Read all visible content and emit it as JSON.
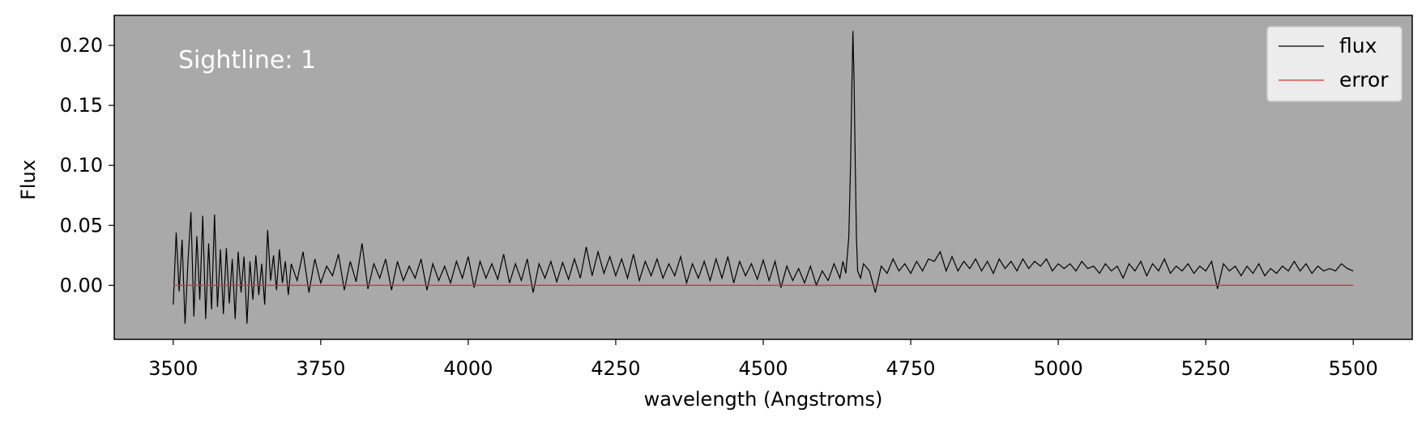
{
  "chart_data": {
    "type": "line",
    "title": "",
    "xlabel": "wavelength (Angstroms)",
    "ylabel": "Flux",
    "xlim": [
      3400,
      5600
    ],
    "ylim": [
      -0.045,
      0.225
    ],
    "xticks": [
      3500,
      3750,
      4000,
      4250,
      4500,
      4750,
      5000,
      5250,
      5500
    ],
    "xtick_labels": [
      "3500",
      "3750",
      "4000",
      "4250",
      "4500",
      "4750",
      "5000",
      "5250",
      "5500"
    ],
    "yticks": [
      0.0,
      0.05,
      0.1,
      0.15,
      0.2
    ],
    "ytick_labels": [
      "0.00",
      "0.05",
      "0.10",
      "0.15",
      "0.20"
    ],
    "grid": false,
    "legend_position": "top-right",
    "annotation": "Sightline: 1",
    "plot_background": "#a9a9a9",
    "legend_background": "#ececec",
    "series": [
      {
        "name": "flux",
        "color": "#000000",
        "x": [
          3500,
          3505,
          3510,
          3515,
          3520,
          3525,
          3530,
          3535,
          3540,
          3545,
          3550,
          3555,
          3560,
          3565,
          3570,
          3575,
          3580,
          3585,
          3590,
          3595,
          3600,
          3605,
          3610,
          3615,
          3620,
          3625,
          3630,
          3635,
          3640,
          3645,
          3650,
          3655,
          3660,
          3665,
          3670,
          3675,
          3680,
          3685,
          3690,
          3695,
          3700,
          3710,
          3720,
          3730,
          3740,
          3750,
          3760,
          3770,
          3780,
          3790,
          3800,
          3810,
          3820,
          3830,
          3840,
          3850,
          3860,
          3870,
          3880,
          3890,
          3900,
          3910,
          3920,
          3930,
          3940,
          3950,
          3960,
          3970,
          3980,
          3990,
          4000,
          4010,
          4020,
          4030,
          4040,
          4050,
          4060,
          4070,
          4080,
          4090,
          4100,
          4110,
          4120,
          4130,
          4140,
          4150,
          4160,
          4170,
          4180,
          4190,
          4200,
          4210,
          4220,
          4230,
          4240,
          4250,
          4260,
          4270,
          4280,
          4290,
          4300,
          4310,
          4320,
          4330,
          4340,
          4350,
          4360,
          4370,
          4380,
          4390,
          4400,
          4410,
          4420,
          4430,
          4440,
          4450,
          4460,
          4470,
          4480,
          4490,
          4500,
          4510,
          4520,
          4530,
          4540,
          4550,
          4560,
          4570,
          4580,
          4590,
          4600,
          4610,
          4620,
          4630,
          4635,
          4640,
          4645,
          4648,
          4650,
          4652,
          4654,
          4656,
          4658,
          4660,
          4665,
          4670,
          4680,
          4690,
          4700,
          4710,
          4720,
          4730,
          4740,
          4750,
          4760,
          4770,
          4780,
          4790,
          4800,
          4810,
          4820,
          4830,
          4840,
          4850,
          4860,
          4870,
          4880,
          4890,
          4900,
          4910,
          4920,
          4930,
          4940,
          4950,
          4960,
          4970,
          4980,
          4990,
          5000,
          5010,
          5020,
          5030,
          5040,
          5050,
          5060,
          5070,
          5080,
          5090,
          5100,
          5110,
          5120,
          5130,
          5140,
          5150,
          5160,
          5170,
          5180,
          5190,
          5200,
          5210,
          5220,
          5230,
          5240,
          5250,
          5260,
          5270,
          5280,
          5290,
          5300,
          5310,
          5320,
          5330,
          5340,
          5350,
          5360,
          5370,
          5380,
          5390,
          5400,
          5410,
          5420,
          5430,
          5440,
          5450,
          5460,
          5470,
          5480,
          5490,
          5500
        ],
        "y": [
          -0.016,
          0.044,
          -0.005,
          0.038,
          -0.032,
          0.02,
          0.061,
          -0.026,
          0.041,
          -0.012,
          0.058,
          -0.028,
          0.035,
          -0.02,
          0.059,
          -0.018,
          0.03,
          -0.024,
          0.031,
          -0.015,
          0.022,
          -0.028,
          0.028,
          -0.006,
          0.024,
          -0.032,
          0.02,
          -0.012,
          0.025,
          -0.008,
          0.018,
          -0.016,
          0.046,
          0.004,
          0.025,
          -0.004,
          0.03,
          0.002,
          0.02,
          -0.008,
          0.018,
          0.004,
          0.028,
          -0.006,
          0.022,
          0.002,
          0.016,
          0.008,
          0.026,
          -0.004,
          0.02,
          0.003,
          0.035,
          -0.003,
          0.018,
          0.006,
          0.022,
          -0.004,
          0.02,
          0.004,
          0.016,
          0.006,
          0.022,
          -0.004,
          0.018,
          0.004,
          0.016,
          0.002,
          0.02,
          0.006,
          0.024,
          -0.002,
          0.02,
          0.006,
          0.018,
          0.005,
          0.026,
          0.002,
          0.018,
          0.004,
          0.022,
          -0.006,
          0.018,
          0.006,
          0.02,
          0.003,
          0.019,
          0.005,
          0.022,
          0.006,
          0.032,
          0.008,
          0.028,
          0.01,
          0.024,
          0.008,
          0.022,
          0.006,
          0.026,
          0.004,
          0.02,
          0.008,
          0.022,
          0.006,
          0.018,
          0.008,
          0.024,
          0.002,
          0.018,
          0.006,
          0.02,
          0.004,
          0.022,
          0.006,
          0.024,
          0.002,
          0.02,
          0.008,
          0.018,
          0.005,
          0.021,
          0.004,
          0.02,
          -0.002,
          0.016,
          0.004,
          0.014,
          0.002,
          0.016,
          0.0,
          0.012,
          0.004,
          0.018,
          0.006,
          0.02,
          0.01,
          0.04,
          0.1,
          0.16,
          0.212,
          0.17,
          0.1,
          0.04,
          0.012,
          0.006,
          0.018,
          0.012,
          -0.006,
          0.016,
          0.01,
          0.022,
          0.012,
          0.018,
          0.01,
          0.02,
          0.012,
          0.022,
          0.02,
          0.028,
          0.012,
          0.024,
          0.012,
          0.02,
          0.014,
          0.022,
          0.012,
          0.02,
          0.01,
          0.022,
          0.014,
          0.02,
          0.012,
          0.022,
          0.014,
          0.02,
          0.016,
          0.022,
          0.012,
          0.018,
          0.014,
          0.018,
          0.012,
          0.02,
          0.014,
          0.016,
          0.01,
          0.018,
          0.012,
          0.016,
          0.006,
          0.018,
          0.012,
          0.02,
          0.008,
          0.018,
          0.012,
          0.022,
          0.01,
          0.016,
          0.012,
          0.018,
          0.01,
          0.016,
          0.012,
          0.02,
          -0.003,
          0.018,
          0.012,
          0.016,
          0.008,
          0.016,
          0.01,
          0.018,
          0.008,
          0.014,
          0.01,
          0.016,
          0.012,
          0.02,
          0.012,
          0.018,
          0.01,
          0.016,
          0.012,
          0.014,
          0.012,
          0.018,
          0.014,
          0.012
        ]
      },
      {
        "name": "error",
        "color": "#e03030",
        "x": [
          3500,
          5500
        ],
        "y": [
          0.0,
          0.0
        ]
      }
    ]
  }
}
